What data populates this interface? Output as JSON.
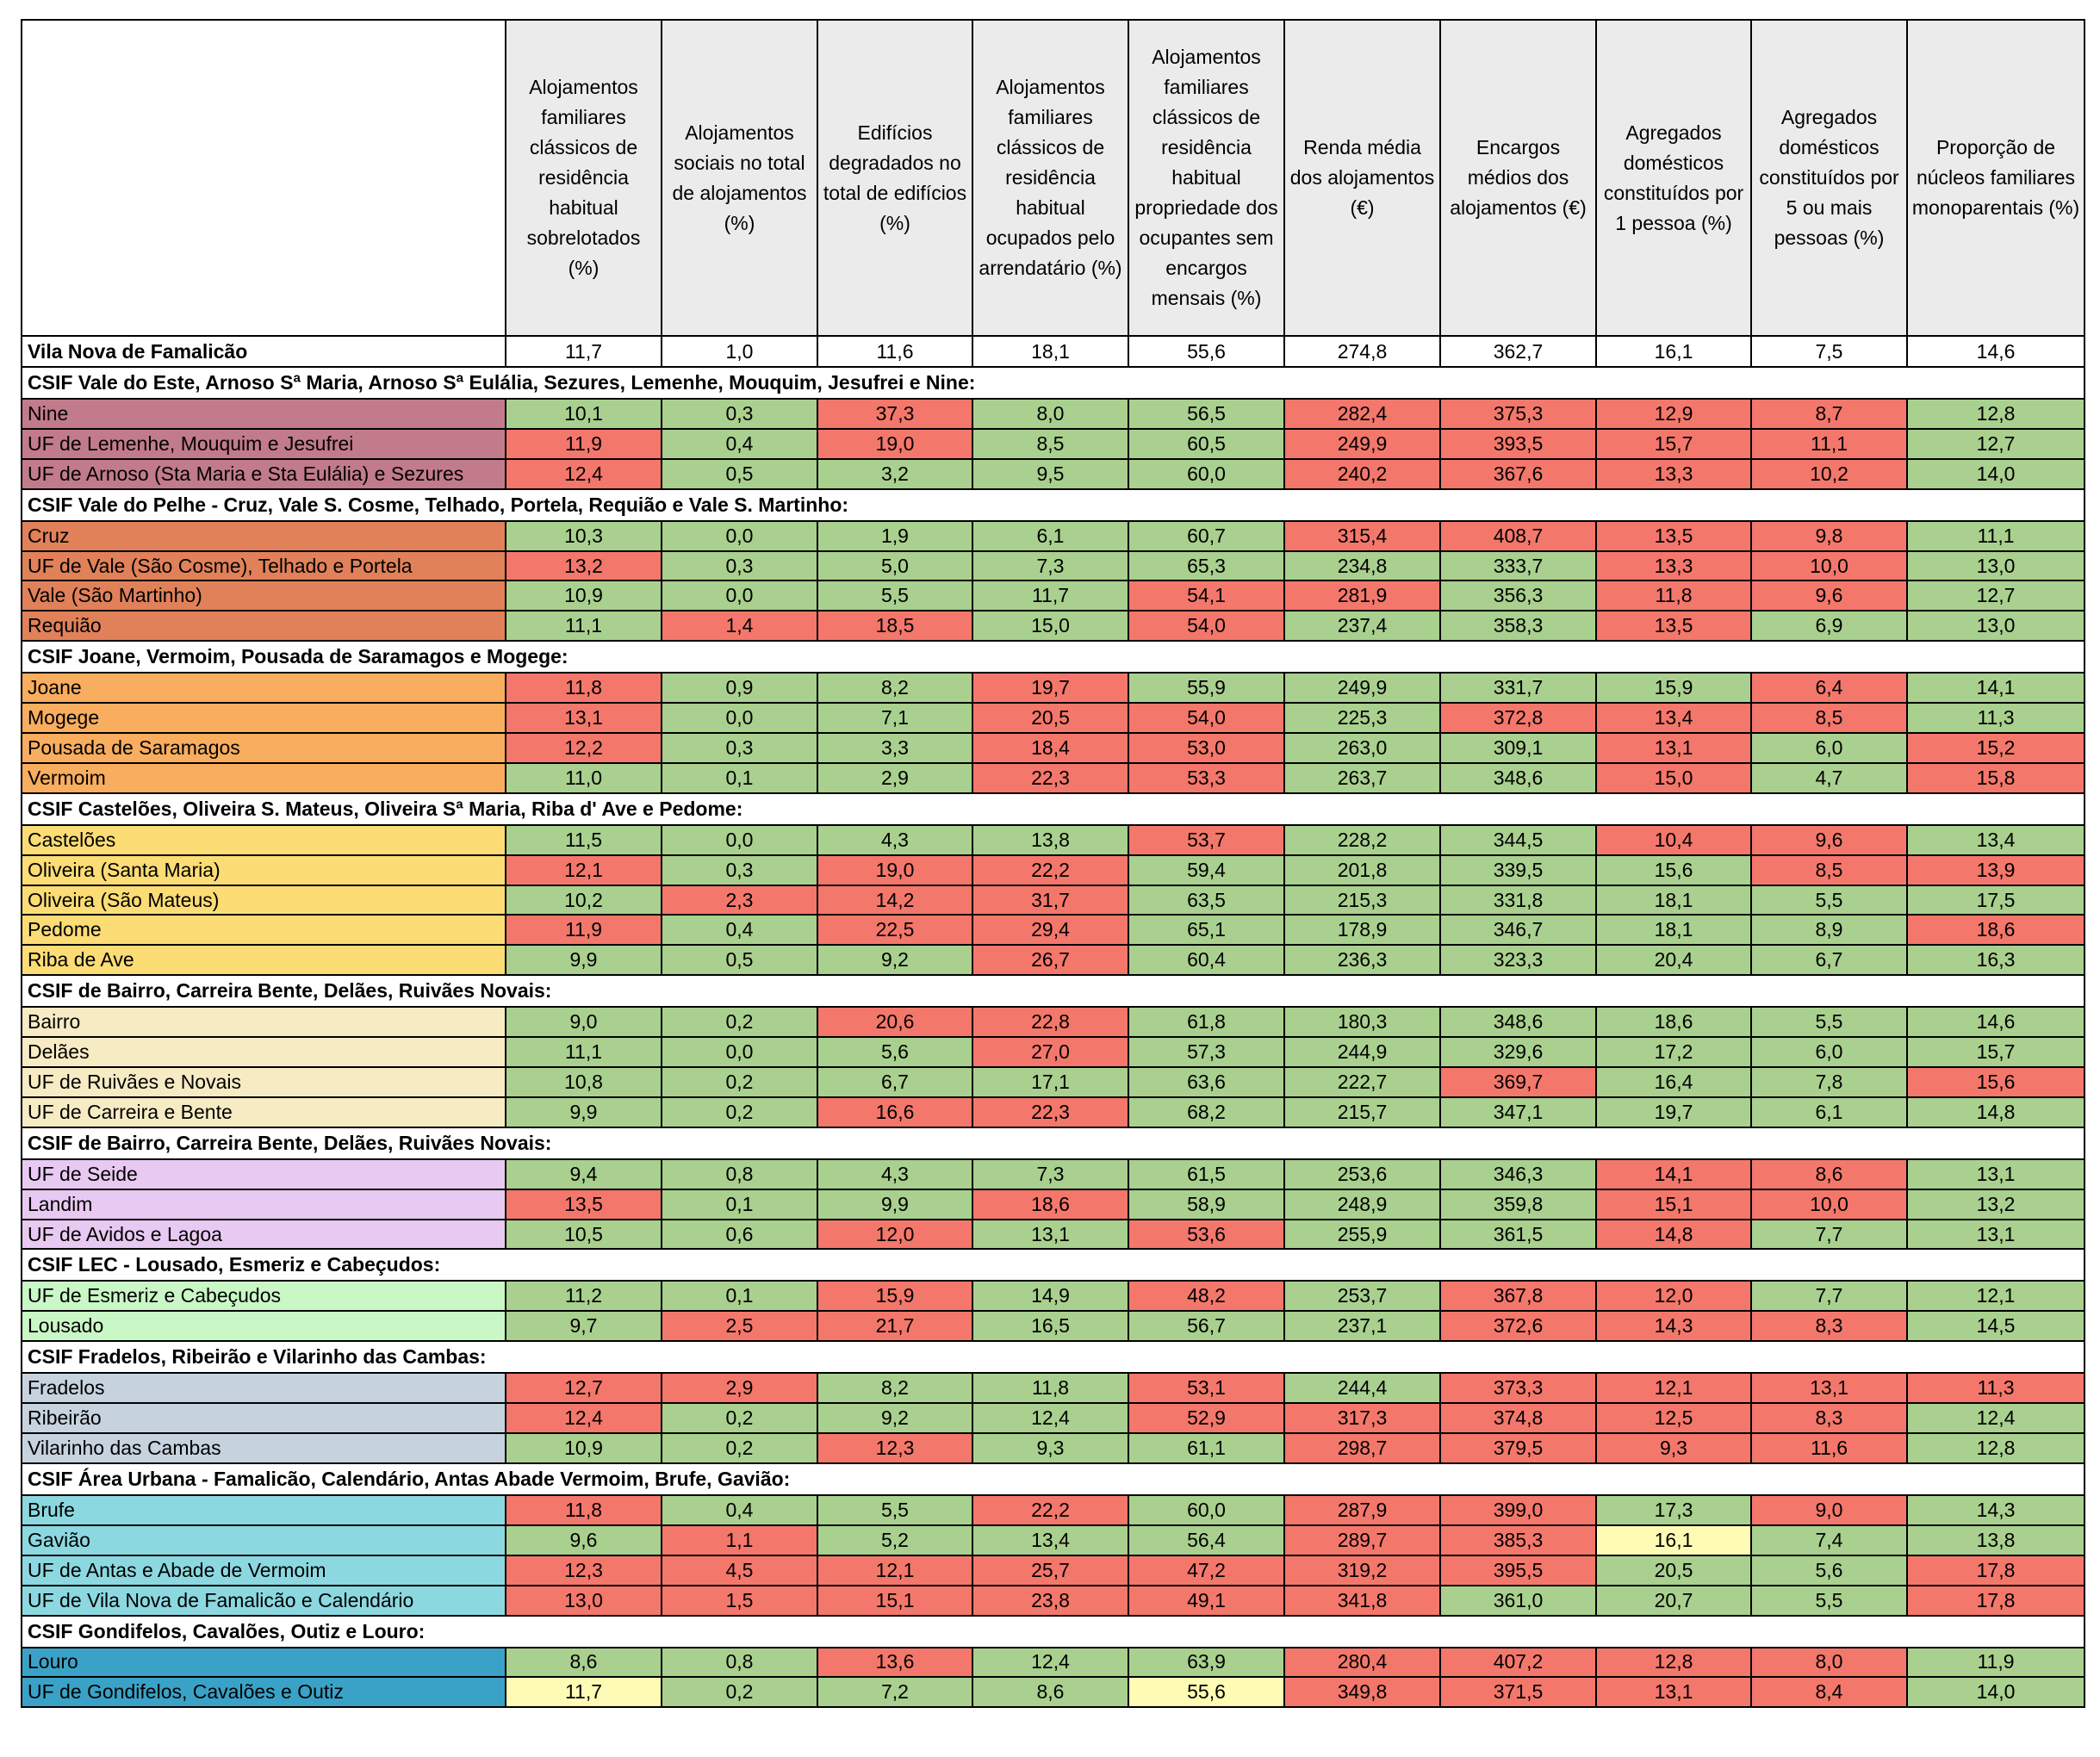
{
  "colors": {
    "green": "#a9d08e",
    "red": "#f4776b",
    "yellow": "#fefcb4",
    "header_bg": "#ebebeb"
  },
  "headers": [
    "Alojamentos familiares clássicos de residência habitual sobrelotados (%)",
    "Alojamentos sociais no total de alojamentos (%)",
    "Edifícios degradados no total de edifícios (%)",
    "Alojamentos familiares clássicos de residência habitual ocupados pelo arrendatário (%)",
    "Alojamentos familiares clássicos de residência habitual propriedade dos ocupantes sem encargos mensais (%)",
    "Renda média dos alojamentos (€)",
    "Encargos médios dos alojamentos (€)",
    "Agregados domésticos constituídos por 1 pessoa (%)",
    "Agregados domésticos constituídos por 5 ou mais pessoas (%)",
    "Proporção de núcleos familiares monoparentais (%)"
  ],
  "total": {
    "name": "Vila Nova de Famalicão",
    "values": [
      "11,7",
      "1,0",
      "11,6",
      "18,1",
      "55,6",
      "274,8",
      "362,7",
      "16,1",
      "7,5",
      "14,6"
    ]
  },
  "groups": [
    {
      "title": "CSIF Vale do Este, Arnoso Sª Maria, Arnoso Sª Eulália, Sezures, Lemenhe, Mouquim, Jesufrei e Nine:",
      "color": "#c27b8b",
      "rows": [
        {
          "name": "Nine",
          "values": [
            "10,1",
            "0,3",
            "37,3",
            "8,0",
            "56,5",
            "282,4",
            "375,3",
            "12,9",
            "8,7",
            "12,8"
          ],
          "status": "ggrggrrrrg"
        },
        {
          "name": "UF de Lemenhe, Mouquim e Jesufrei",
          "values": [
            "11,9",
            "0,4",
            "19,0",
            "8,5",
            "60,5",
            "249,9",
            "393,5",
            "15,7",
            "11,1",
            "12,7"
          ],
          "status": "rgrggrrrrg"
        },
        {
          "name": "UF de Arnoso (Sta Maria e Sta Eulália) e Sezures",
          "values": [
            "12,4",
            "0,5",
            "3,2",
            "9,5",
            "60,0",
            "240,2",
            "367,6",
            "13,3",
            "10,2",
            "14,0"
          ],
          "status": "rggggrrrrg"
        }
      ]
    },
    {
      "title": "CSIF Vale do Pelhe - Cruz, Vale S. Cosme, Telhado, Portela, Requião e Vale S. Martinho:",
      "color": "#e0815a",
      "rows": [
        {
          "name": "Cruz",
          "values": [
            "10,3",
            "0,0",
            "1,9",
            "6,1",
            "60,7",
            "315,4",
            "408,7",
            "13,5",
            "9,8",
            "11,1"
          ],
          "status": "ggggg rrrrg"
        },
        {
          "name": "UF de Vale (São Cosme), Telhado e Portela",
          "values": [
            "13,2",
            "0,3",
            "5,0",
            "7,3",
            "65,3",
            "234,8",
            "333,7",
            "13,3",
            "10,0",
            "13,0"
          ],
          "status": "rggggggrrg"
        },
        {
          "name": "Vale (São Martinho)",
          "values": [
            "10,9",
            "0,0",
            "5,5",
            "11,7",
            "54,1",
            "281,9",
            "356,3",
            "11,8",
            "9,6",
            "12,7"
          ],
          "status": "ggggrrgrrg"
        },
        {
          "name": "Requião",
          "values": [
            "11,1",
            "1,4",
            "18,5",
            "15,0",
            "54,0",
            "237,4",
            "358,3",
            "13,5",
            "6,9",
            "13,0"
          ],
          "status": "grrgrggrgg"
        }
      ]
    },
    {
      "title": "CSIF Joane, Vermoim, Pousada de Saramagos e Mogege:",
      "color": "#f9ad5e",
      "rows": [
        {
          "name": "Joane",
          "values": [
            "11,8",
            "0,9",
            "8,2",
            "19,7",
            "55,9",
            "249,9",
            "331,7",
            "15,9",
            "6,4",
            "14,1"
          ],
          "status": "rggrggggrgg"
        },
        {
          "name": "Mogege",
          "values": [
            "13,1",
            "0,0",
            "7,1",
            "20,5",
            "54,0",
            "225,3",
            "372,8",
            "13,4",
            "8,5",
            "11,3"
          ],
          "status": "rggrrgrrrg"
        },
        {
          "name": "Pousada de Saramagos",
          "values": [
            "12,2",
            "0,3",
            "3,3",
            "18,4",
            "53,0",
            "263,0",
            "309,1",
            "13,1",
            "6,0",
            "15,2"
          ],
          "status": "rggrrggrgr"
        },
        {
          "name": "Vermoim",
          "values": [
            "11,0",
            "0,1",
            "2,9",
            "22,3",
            "53,3",
            "263,7",
            "348,6",
            "15,0",
            "4,7",
            "15,8"
          ],
          "status": "gggrrggrgr"
        }
      ]
    },
    {
      "title": "CSIF Castelões, Oliveira S. Mateus, Oliveira Sª Maria, Riba d' Ave e Pedome:",
      "color": "#fbdc75",
      "rows": [
        {
          "name": "Castelões",
          "values": [
            "11,5",
            "0,0",
            "4,3",
            "13,8",
            "53,7",
            "228,2",
            "344,5",
            "10,4",
            "9,6",
            "13,4"
          ],
          "status": "ggggrggrrg"
        },
        {
          "name": "Oliveira (Santa Maria)",
          "values": [
            "12,1",
            "0,3",
            "19,0",
            "22,2",
            "59,4",
            "201,8",
            "339,5",
            "15,6",
            "8,5",
            "13,9"
          ],
          "status": "rgrrggggrrg"
        },
        {
          "name": "Oliveira (São Mateus)",
          "values": [
            "10,2",
            "2,3",
            "14,2",
            "31,7",
            "63,5",
            "215,3",
            "331,8",
            "18,1",
            "5,5",
            "17,5"
          ],
          "status": "grrrggggggr"
        },
        {
          "name": "Pedome",
          "values": [
            "11,9",
            "0,4",
            "22,5",
            "29,4",
            "65,1",
            "178,9",
            "346,7",
            "18,1",
            "8,9",
            "18,6"
          ],
          "status": "rgrrgggggrr"
        },
        {
          "name": "Riba de Ave",
          "values": [
            "9,9",
            "0,5",
            "9,2",
            "26,7",
            "60,4",
            "236,3",
            "323,3",
            "20,4",
            "6,7",
            "16,3"
          ],
          "status": "gggrggggggr"
        }
      ]
    },
    {
      "title": "CSIF de Bairro, Carreira Bente, Delães, Ruivães Novais:",
      "color": "#f6ebc3",
      "rows": [
        {
          "name": "Bairro",
          "values": [
            "9,0",
            "0,2",
            "20,6",
            "22,8",
            "61,8",
            "180,3",
            "348,6",
            "18,6",
            "5,5",
            "14,6"
          ],
          "status": "ggrrggggggy"
        },
        {
          "name": "Delães",
          "values": [
            "11,1",
            "0,0",
            "5,6",
            "27,0",
            "57,3",
            "244,9",
            "329,6",
            "17,2",
            "6,0",
            "15,7"
          ],
          "status": "gggrggggggr"
        },
        {
          "name": "UF de Ruivães e Novais",
          "values": [
            "10,8",
            "0,2",
            "6,7",
            "17,1",
            "63,6",
            "222,7",
            "369,7",
            "16,4",
            "7,8",
            "15,6"
          ],
          "status": "gggggg rggrr"
        },
        {
          "name": "UF de Carreira e Bente",
          "values": [
            "9,9",
            "0,2",
            "16,6",
            "22,3",
            "68,2",
            "215,7",
            "347,1",
            "19,7",
            "6,1",
            "14,8"
          ],
          "status": "ggrrggggggr"
        }
      ]
    },
    {
      "title": "CSIF de Bairro, Carreira Bente, Delães, Ruivães Novais:",
      "color": "#e8c9f1",
      "rows": [
        {
          "name": "UF de Seide",
          "values": [
            "9,4",
            "0,8",
            "4,3",
            "7,3",
            "61,5",
            "253,6",
            "346,3",
            "14,1",
            "8,6",
            "13,1"
          ],
          "status": "ggggg ggrrg"
        },
        {
          "name": "Landim",
          "values": [
            "13,5",
            "0,1",
            "9,9",
            "18,6",
            "58,9",
            "248,9",
            "359,8",
            "15,1",
            "10,0",
            "13,2"
          ],
          "status": "rggrgggrrg"
        },
        {
          "name": "UF de Avidos e Lagoa",
          "values": [
            "10,5",
            "0,6",
            "12,0",
            "13,1",
            "53,6",
            "255,9",
            "361,5",
            "14,8",
            "7,7",
            "13,1"
          ],
          "status": "ggrgrggrgg"
        }
      ]
    },
    {
      "title": "CSIF LEC - Lousado, Esmeriz e Cabeçudos:",
      "color": "#c9f7c6",
      "rows": [
        {
          "name": "UF de Esmeriz e Cabeçudos",
          "values": [
            "11,2",
            "0,1",
            "15,9",
            "14,9",
            "48,2",
            "253,7",
            "367,8",
            "12,0",
            "7,7",
            "12,1"
          ],
          "status": "ggrgrgrrgg"
        },
        {
          "name": "Lousado",
          "values": [
            "9,7",
            "2,5",
            "21,7",
            "16,5",
            "56,7",
            "237,1",
            "372,6",
            "14,3",
            "8,3",
            "14,5"
          ],
          "status": "grrgggrrrg"
        }
      ]
    },
    {
      "title": "CSIF Fradelos, Ribeirão e Vilarinho das Cambas:",
      "color": "#c6d3df",
      "rows": [
        {
          "name": "Fradelos",
          "values": [
            "12,7",
            "2,9",
            "8,2",
            "11,8",
            "53,1",
            "244,4",
            "373,3",
            "12,1",
            "13,1",
            "11,3"
          ],
          "status": "rrggr grrrrg"
        },
        {
          "name": "Ribeirão",
          "values": [
            "12,4",
            "0,2",
            "9,2",
            "12,4",
            "52,9",
            "317,3",
            "374,8",
            "12,5",
            "8,3",
            "12,4"
          ],
          "status": "rgggrrrrrg"
        },
        {
          "name": "Vilarinho das Cambas",
          "values": [
            "10,9",
            "0,2",
            "12,3",
            "9,3",
            "61,1",
            "298,7",
            "379,5",
            "9,3",
            "11,6",
            "12,8"
          ],
          "status": "ggrggrrrrg"
        }
      ]
    },
    {
      "title": "CSIF Área Urbana - Famalicão, Calendário, Antas Abade Vermoim, Brufe, Gavião:",
      "color": "#8cd8e0",
      "rows": [
        {
          "name": "Brufe",
          "values": [
            "11,8",
            "0,4",
            "5,5",
            "22,2",
            "60,0",
            "287,9",
            "399,0",
            "17,3",
            "9,0",
            "14,3"
          ],
          "status": "rggrgrrgrg"
        },
        {
          "name": "Gavião",
          "values": [
            "9,6",
            "1,1",
            "5,2",
            "13,4",
            "56,4",
            "289,7",
            "385,3",
            "16,1",
            "7,4",
            "13,8"
          ],
          "status": "grgggrryg g"
        },
        {
          "name": "UF de Antas e Abade de Vermoim",
          "values": [
            "12,3",
            "4,5",
            "12,1",
            "25,7",
            "47,2",
            "319,2",
            "395,5",
            "20,5",
            "5,6",
            "17,8"
          ],
          "status": "rrrrrrrggr"
        },
        {
          "name": "UF de Vila Nova de Famalicão e Calendário",
          "values": [
            "13,0",
            "1,5",
            "15,1",
            "23,8",
            "49,1",
            "341,8",
            "361,0",
            "20,7",
            "5,5",
            "17,8"
          ],
          "status": "rrrrrrgggr"
        }
      ]
    },
    {
      "title": "CSIF Gondifelos, Cavalões, Outiz e Louro:",
      "color": "#3aa2c7",
      "rows": [
        {
          "name": "Louro",
          "values": [
            "8,6",
            "0,8",
            "13,6",
            "12,4",
            "63,9",
            "280,4",
            "407,2",
            "12,8",
            "8,0",
            "11,9"
          ],
          "status": "ggrggrrrrg"
        },
        {
          "name": "UF de Gondifelos, Cavalões e Outiz",
          "values": [
            "11,7",
            "0,2",
            "7,2",
            "8,6",
            "55,6",
            "349,8",
            "371,5",
            "13,1",
            "8,4",
            "14,0"
          ],
          "status": "yggg yrrrrg"
        }
      ]
    }
  ]
}
